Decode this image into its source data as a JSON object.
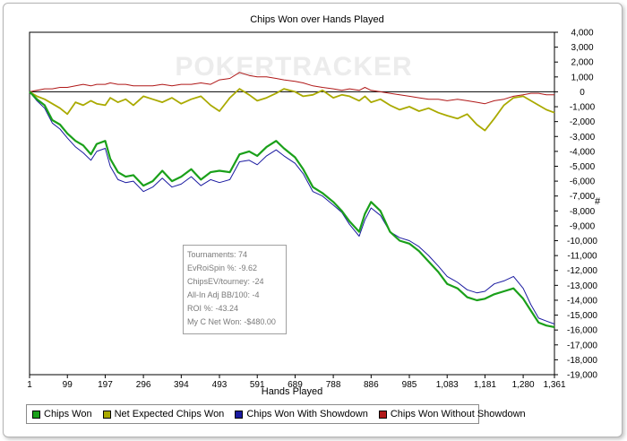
{
  "colors": {
    "chips_won": "#1aa01a",
    "net_expected": "#aaaa00",
    "with_showdown": "#1a1aa0",
    "without_showdown": "#b01818",
    "zero_line": "#000000",
    "watermark": "#ececec"
  },
  "watermark": "POKERTRACKER",
  "stats": {
    "tournaments": "Tournaments: 74",
    "evroispin": "EvRoiSpin %: -9.62",
    "chipsev": "ChipsEV/tourney: -24",
    "allin": "All-In Adj BB/100: -4",
    "roi": "ROI %: -43.24",
    "net_won": "My C Net Won: -$480.00"
  },
  "chart_data": {
    "type": "line",
    "title": "Chips Won over Hands Played",
    "xlabel": "Hands Played",
    "ylabel": "#",
    "xlim": [
      1,
      1361
    ],
    "ylim": [
      -19000,
      4000
    ],
    "x_ticks": [
      "1",
      "99",
      "197",
      "296",
      "394",
      "493",
      "591",
      "689",
      "788",
      "886",
      "985",
      "1,083",
      "1,181",
      "1,280",
      "1,361"
    ],
    "x_tick_values": [
      1,
      99,
      197,
      296,
      394,
      493,
      591,
      689,
      788,
      886,
      985,
      1083,
      1181,
      1280,
      1361
    ],
    "y_ticks": [
      "4,000",
      "3,000",
      "2,000",
      "1,000",
      "0",
      "-1,000",
      "-2,000",
      "-3,000",
      "-4,000",
      "-5,000",
      "-6,000",
      "-7,000",
      "-8,000",
      "-9,000",
      "-10,000",
      "-11,000",
      "-12,000",
      "-13,000",
      "-14,000",
      "-15,000",
      "-16,000",
      "-17,000",
      "-18,000",
      "-19,000"
    ],
    "y_tick_values": [
      4000,
      3000,
      2000,
      1000,
      0,
      -1000,
      -2000,
      -3000,
      -4000,
      -5000,
      -6000,
      -7000,
      -8000,
      -9000,
      -10000,
      -11000,
      -12000,
      -13000,
      -14000,
      -15000,
      -16000,
      -17000,
      -18000,
      -19000
    ],
    "series": [
      {
        "name": "Chips Won",
        "x": [
          1,
          20,
          40,
          60,
          80,
          99,
          120,
          140,
          160,
          175,
          197,
          210,
          230,
          250,
          270,
          296,
          320,
          345,
          370,
          394,
          420,
          445,
          470,
          493,
          520,
          545,
          570,
          591,
          615,
          640,
          660,
          689,
          710,
          735,
          760,
          788,
          810,
          830,
          855,
          870,
          886,
          910,
          935,
          960,
          985,
          1010,
          1035,
          1060,
          1083,
          1110,
          1135,
          1160,
          1181,
          1205,
          1230,
          1255,
          1280,
          1300,
          1320,
          1340,
          1361
        ],
        "y": [
          0,
          -500,
          -900,
          -1900,
          -2200,
          -2800,
          -3300,
          -3600,
          -4200,
          -3500,
          -3300,
          -4500,
          -5400,
          -5700,
          -5600,
          -6300,
          -6000,
          -5300,
          -6000,
          -5700,
          -5200,
          -5900,
          -5400,
          -5300,
          -5400,
          -4200,
          -4000,
          -4300,
          -3700,
          -3300,
          -3800,
          -4400,
          -5200,
          -6400,
          -6800,
          -7400,
          -8000,
          -8700,
          -9400,
          -8200,
          -7400,
          -8000,
          -9400,
          -10000,
          -10200,
          -10700,
          -11400,
          -12100,
          -12900,
          -13200,
          -13800,
          -14000,
          -13900,
          -13600,
          -13400,
          -13200,
          -13900,
          -14700,
          -15500,
          -15700,
          -15800
        ]
      },
      {
        "name": "Net Expected Chips Won",
        "x": [
          1,
          20,
          40,
          60,
          80,
          99,
          120,
          140,
          160,
          175,
          197,
          210,
          230,
          250,
          270,
          296,
          320,
          345,
          370,
          394,
          420,
          445,
          470,
          493,
          520,
          545,
          570,
          591,
          615,
          640,
          660,
          689,
          710,
          735,
          760,
          788,
          810,
          830,
          855,
          870,
          886,
          910,
          935,
          960,
          985,
          1010,
          1035,
          1060,
          1083,
          1110,
          1135,
          1160,
          1181,
          1205,
          1230,
          1255,
          1280,
          1300,
          1320,
          1340,
          1361
        ],
        "y": [
          0,
          -300,
          -500,
          -800,
          -1100,
          -1500,
          -700,
          -900,
          -600,
          -800,
          -900,
          -400,
          -700,
          -500,
          -900,
          -300,
          -500,
          -700,
          -400,
          -800,
          -500,
          -300,
          -900,
          -1300,
          -400,
          200,
          -200,
          -600,
          -400,
          -100,
          200,
          0,
          -300,
          -200,
          100,
          -400,
          -200,
          -300,
          -600,
          -300,
          -700,
          -500,
          -900,
          -1200,
          -1000,
          -1300,
          -1100,
          -1400,
          -1600,
          -1800,
          -1500,
          -2200,
          -2600,
          -1800,
          -900,
          -400,
          -300,
          -600,
          -900,
          -1200,
          -1400
        ]
      },
      {
        "name": "Chips Won With Showdown",
        "x": [
          1,
          20,
          40,
          60,
          80,
          99,
          120,
          140,
          160,
          175,
          197,
          210,
          230,
          250,
          270,
          296,
          320,
          345,
          370,
          394,
          420,
          445,
          470,
          493,
          520,
          545,
          570,
          591,
          615,
          640,
          660,
          689,
          710,
          735,
          760,
          788,
          810,
          830,
          855,
          870,
          886,
          910,
          935,
          960,
          985,
          1010,
          1035,
          1060,
          1083,
          1110,
          1135,
          1160,
          1181,
          1205,
          1230,
          1255,
          1280,
          1300,
          1320,
          1340,
          1361
        ],
        "y": [
          0,
          -600,
          -1100,
          -2100,
          -2500,
          -3100,
          -3700,
          -4100,
          -4600,
          -4000,
          -3800,
          -5000,
          -5900,
          -6100,
          -6000,
          -6700,
          -6400,
          -5800,
          -6400,
          -6200,
          -5700,
          -6300,
          -5900,
          -6100,
          -5900,
          -4700,
          -4600,
          -4900,
          -4300,
          -3900,
          -4300,
          -4800,
          -5500,
          -6700,
          -7000,
          -7600,
          -8100,
          -8900,
          -9700,
          -8600,
          -7800,
          -8300,
          -9400,
          -9800,
          -10000,
          -10400,
          -11000,
          -11700,
          -12400,
          -12800,
          -13300,
          -13500,
          -13400,
          -12900,
          -12700,
          -12400,
          -13200,
          -14300,
          -15200,
          -15400,
          -15600
        ]
      },
      {
        "name": "Chips Won Without Showdown",
        "x": [
          1,
          20,
          40,
          60,
          80,
          99,
          120,
          140,
          160,
          175,
          197,
          210,
          230,
          250,
          270,
          296,
          320,
          345,
          370,
          394,
          420,
          445,
          470,
          493,
          520,
          545,
          570,
          591,
          615,
          640,
          660,
          689,
          710,
          735,
          760,
          788,
          810,
          830,
          855,
          870,
          886,
          910,
          935,
          960,
          985,
          1010,
          1035,
          1060,
          1083,
          1110,
          1135,
          1160,
          1181,
          1205,
          1230,
          1255,
          1280,
          1300,
          1320,
          1340,
          1361
        ],
        "y": [
          0,
          100,
          200,
          200,
          300,
          300,
          400,
          500,
          400,
          500,
          500,
          600,
          500,
          500,
          400,
          400,
          400,
          500,
          400,
          500,
          500,
          600,
          500,
          800,
          900,
          1300,
          1100,
          1000,
          1000,
          900,
          800,
          700,
          600,
          400,
          300,
          200,
          100,
          200,
          100,
          300,
          100,
          0,
          -100,
          -200,
          -300,
          -400,
          -500,
          -500,
          -600,
          -500,
          -600,
          -700,
          -800,
          -600,
          -500,
          -300,
          -200,
          -100,
          -100,
          -200,
          -200
        ]
      }
    ],
    "legend": "bottom"
  }
}
